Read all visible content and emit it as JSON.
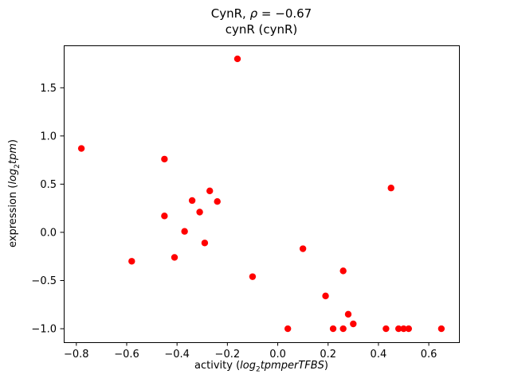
{
  "title": {
    "part1": "CynR, ",
    "rho": "ρ",
    "part2": " = −0.67",
    "line2": "cynR (cynR)"
  },
  "axes": {
    "xlabel": {
      "prefix": "activity (",
      "log": "log",
      "sub": "2",
      "tail": "tpmperTFBS",
      "suffix": ")"
    },
    "ylabel": {
      "prefix": "expression (",
      "log": "log",
      "sub": "2",
      "tail": "tpm",
      "suffix": ")"
    }
  },
  "chart_data": {
    "type": "scatter",
    "title": "CynR, ρ = −0.67",
    "subtitle": "cynR (cynR)",
    "xlabel": "activity (log2 tpm per TFBS)",
    "ylabel": "expression (log2 tpm)",
    "marker_color": "#ff0000",
    "marker_style": "circle",
    "grid": false,
    "legend": "none",
    "xlim": [
      -0.85,
      0.72
    ],
    "ylim": [
      -1.14,
      1.94
    ],
    "xticks": [
      -0.8,
      -0.6,
      -0.4,
      -0.2,
      0.0,
      0.2,
      0.4,
      0.6
    ],
    "yticks": [
      -1.0,
      -0.5,
      0.0,
      0.5,
      1.0,
      1.5
    ],
    "points": [
      [
        -0.78,
        0.87
      ],
      [
        -0.16,
        1.8
      ],
      [
        -0.45,
        0.76
      ],
      [
        0.45,
        0.46
      ],
      [
        -0.27,
        0.43
      ],
      [
        -0.34,
        0.33
      ],
      [
        -0.24,
        0.32
      ],
      [
        -0.31,
        0.21
      ],
      [
        -0.45,
        0.17
      ],
      [
        -0.37,
        0.01
      ],
      [
        -0.29,
        -0.11
      ],
      [
        0.1,
        -0.17
      ],
      [
        -0.41,
        -0.26
      ],
      [
        -0.58,
        -0.3
      ],
      [
        -0.1,
        -0.46
      ],
      [
        0.26,
        -0.4
      ],
      [
        0.19,
        -0.66
      ],
      [
        0.28,
        -0.85
      ],
      [
        0.3,
        -0.95
      ],
      [
        0.04,
        -1.0
      ],
      [
        0.22,
        -1.0
      ],
      [
        0.26,
        -1.0
      ],
      [
        0.43,
        -1.0
      ],
      [
        0.48,
        -1.0
      ],
      [
        0.5,
        -1.0
      ],
      [
        0.52,
        -1.0
      ],
      [
        0.65,
        -1.0
      ]
    ]
  }
}
